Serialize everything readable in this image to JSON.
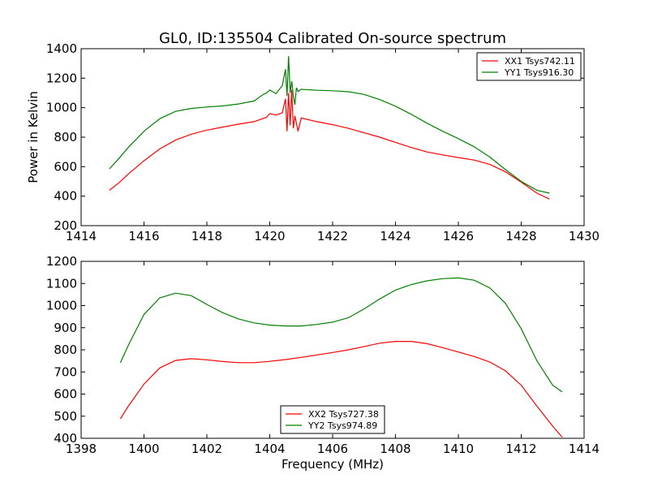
{
  "chart_data": [
    {
      "type": "line",
      "title": "GL0, ID:135504 Calibrated On-source spectrum",
      "xlabel": "",
      "ylabel": "Power in Kelvin",
      "xlim": [
        1414,
        1430
      ],
      "ylim": [
        200,
        1400
      ],
      "xticks": [
        1414,
        1416,
        1418,
        1420,
        1422,
        1424,
        1426,
        1428,
        1430
      ],
      "yticks": [
        200,
        400,
        600,
        800,
        1000,
        1200,
        1400
      ],
      "legend_position": "top-right",
      "grid": false,
      "series": [
        {
          "name": "XX1 Tsys742.11",
          "color": "#ff0000",
          "x": [
            1414.9,
            1415.2,
            1415.5,
            1416.0,
            1416.5,
            1417.0,
            1417.5,
            1418.0,
            1418.5,
            1419.0,
            1419.5,
            1419.9,
            1420.0,
            1420.2,
            1420.4,
            1420.5,
            1420.55,
            1420.6,
            1420.65,
            1420.7,
            1420.75,
            1420.8,
            1420.9,
            1421.0,
            1421.5,
            1422.0,
            1422.5,
            1423.0,
            1423.5,
            1424.0,
            1424.5,
            1425.0,
            1425.5,
            1426.0,
            1426.5,
            1427.0,
            1427.5,
            1428.0,
            1428.5,
            1428.9
          ],
          "y": [
            440,
            490,
            550,
            640,
            720,
            780,
            820,
            848,
            868,
            888,
            905,
            935,
            960,
            950,
            965,
            1060,
            840,
            1100,
            880,
            1120,
            860,
            945,
            840,
            930,
            905,
            885,
            860,
            830,
            800,
            765,
            730,
            700,
            680,
            662,
            645,
            615,
            565,
            495,
            420,
            380
          ]
        },
        {
          "name": "YY1 Tsys916.30",
          "color": "#008000",
          "x": [
            1414.9,
            1415.2,
            1415.5,
            1416.0,
            1416.5,
            1417.0,
            1417.5,
            1418.0,
            1418.5,
            1419.0,
            1419.5,
            1419.8,
            1419.9,
            1420.0,
            1420.2,
            1420.4,
            1420.5,
            1420.55,
            1420.6,
            1420.65,
            1420.7,
            1420.75,
            1420.8,
            1420.85,
            1420.9,
            1421.0,
            1421.5,
            1422.0,
            1422.5,
            1423.0,
            1423.5,
            1424.0,
            1424.5,
            1425.0,
            1425.5,
            1426.0,
            1426.5,
            1427.0,
            1427.5,
            1428.0,
            1428.5,
            1428.9
          ],
          "y": [
            585,
            655,
            730,
            840,
            925,
            975,
            995,
            1005,
            1012,
            1025,
            1045,
            1090,
            1100,
            1120,
            1095,
            1150,
            1260,
            1080,
            1350,
            1100,
            1180,
            1080,
            1020,
            1135,
            1110,
            1125,
            1118,
            1115,
            1108,
            1090,
            1055,
            1010,
            955,
            895,
            840,
            790,
            735,
            665,
            580,
            500,
            440,
            420
          ]
        }
      ]
    },
    {
      "type": "line",
      "title": "",
      "xlabel": "Frequency (MHz)",
      "ylabel": "",
      "xlim": [
        1398,
        1414
      ],
      "ylim": [
        400,
        1200
      ],
      "xticks": [
        1398,
        1400,
        1402,
        1404,
        1406,
        1408,
        1410,
        1412,
        1414
      ],
      "yticks": [
        400,
        500,
        600,
        700,
        800,
        900,
        1000,
        1100,
        1200
      ],
      "legend_position": "lower-center",
      "grid": false,
      "series": [
        {
          "name": "XX2 Tsys727.38",
          "color": "#ff0000",
          "x": [
            1399.25,
            1399.5,
            1400.0,
            1400.5,
            1401.0,
            1401.5,
            1402.0,
            1402.5,
            1403.0,
            1403.5,
            1404.0,
            1404.5,
            1405.0,
            1405.5,
            1406.0,
            1406.5,
            1407.0,
            1407.5,
            1408.0,
            1408.5,
            1409.0,
            1409.5,
            1410.0,
            1410.5,
            1411.0,
            1411.5,
            1412.0,
            1412.5,
            1413.0,
            1413.3
          ],
          "y": [
            488,
            545,
            645,
            718,
            752,
            760,
            755,
            747,
            742,
            742,
            748,
            756,
            766,
            777,
            788,
            800,
            815,
            830,
            838,
            838,
            828,
            810,
            790,
            770,
            745,
            705,
            640,
            545,
            455,
            405
          ]
        },
        {
          "name": "YY2 Tsys974.89",
          "color": "#008000",
          "x": [
            1399.25,
            1399.5,
            1400.0,
            1400.5,
            1401.0,
            1401.5,
            1402.0,
            1402.5,
            1403.0,
            1403.5,
            1404.0,
            1404.5,
            1405.0,
            1405.5,
            1406.0,
            1406.5,
            1407.0,
            1407.5,
            1408.0,
            1408.5,
            1409.0,
            1409.5,
            1410.0,
            1410.5,
            1411.0,
            1411.5,
            1412.0,
            1412.5,
            1413.0,
            1413.3
          ],
          "y": [
            742,
            820,
            960,
            1035,
            1056,
            1045,
            1005,
            968,
            940,
            922,
            912,
            908,
            908,
            915,
            925,
            945,
            985,
            1030,
            1070,
            1095,
            1112,
            1122,
            1125,
            1115,
            1080,
            1010,
            895,
            750,
            640,
            610
          ]
        }
      ]
    }
  ]
}
